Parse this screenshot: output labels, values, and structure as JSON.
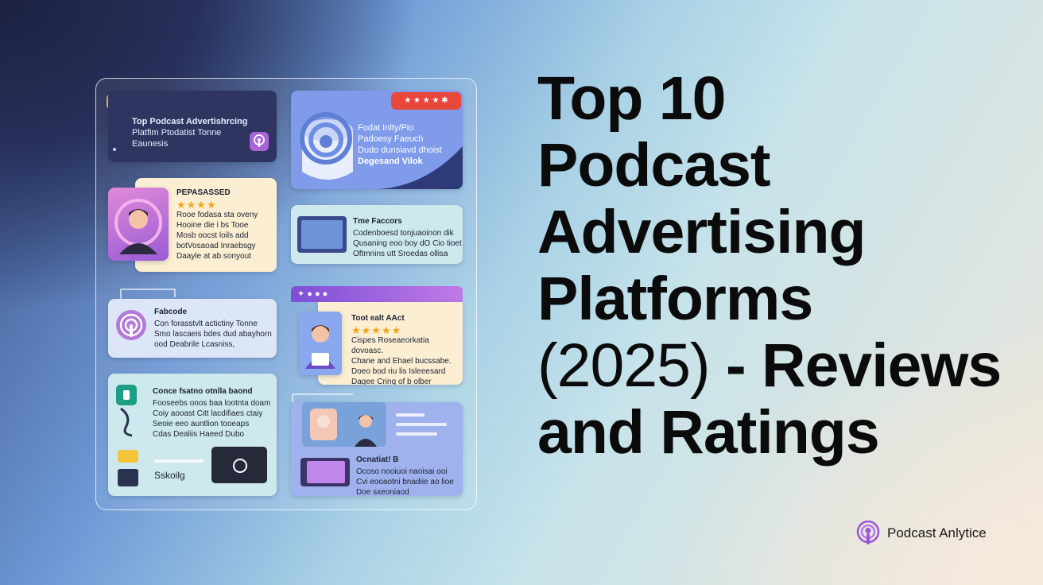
{
  "headline": {
    "line1": "Top 10",
    "line2": "Podcast",
    "line3": "Advertising",
    "line4": "Platforms",
    "line5_light": "(2025)",
    "line5_bold": " - Reviews",
    "line6": "and Ratings"
  },
  "brand": {
    "name": "Podcast Anlytice"
  },
  "cards": {
    "c1": {
      "line1": "Top Podcast Advertishrcing",
      "line2": "Platfim Ptodatist Tonne",
      "line3": "Eaunesis"
    },
    "c2": {
      "line1": "Fodat Inlty/Pio",
      "line2": "Padoesy Faeuch",
      "line3": "Dudo dunsiavd dhoist",
      "line4": "Degesand Vilok",
      "rating": "★ ★ ★ ★"
    },
    "c3": {
      "title": "PEPASASSED",
      "stars": "★★★★",
      "line1": "Rooe fodasa sta oveny",
      "line2": "Hooine die i bs Tooe",
      "line3": "Mosb oocst loils add",
      "line4": "botVosaoad Inraebsgy",
      "line5": "Daayle at ab sonyout"
    },
    "c4": {
      "title": "Tme Faccors",
      "line1": "Codenboesd tonjuaoinon dik",
      "line2": "Qusaning eoo boy dO Cio tioet",
      "line3": "Oftmnins utt Sroedas ollisa"
    },
    "c5": {
      "title": "Fabcode",
      "line1": "Con forasstvlt actictiny Tonne",
      "line2": "Smo lascaeis bdes dud abayhorn",
      "line3": "ood Deabrile Lcasniss,"
    },
    "c6": {
      "title": "Toot ealt AAct",
      "stars": "★★★★★",
      "line1": "Cispes Roseaeorkatia dovoasc.",
      "line2": "Chane and Ehael bucssabe.",
      "line3": "Doeo bod riu lis Isleeesard",
      "line4": "Dagee Cring of b olber"
    },
    "c7": {
      "title": "Conce fsatno otnlla baond",
      "line1": "Fooseebs onos baa lootnta doam",
      "line2": "Coiy aooast Citt lacdifiaes ctaiy",
      "line3": "Seoie eeo auntlion tooeaps",
      "line4": "Cdas Dealiis Haeed Dubo",
      "label": "Sskoilg"
    },
    "c8": {
      "title": "Ocnatiat! B",
      "line1": "Ocoso nooiuoi naoisai ooi",
      "line2": "Cvi eooaotni bnadiie ao lioe",
      "line3": "Doe sxeoniaod"
    }
  },
  "colors": {
    "card_dark": "#2e3560",
    "card_cream": "#fbeed2",
    "card_blue": "#7f9bea",
    "card_cyan": "#cde9ee",
    "accent_purple": "#a765d9",
    "accent_red": "#e8473c",
    "star": "#f2a41c"
  }
}
